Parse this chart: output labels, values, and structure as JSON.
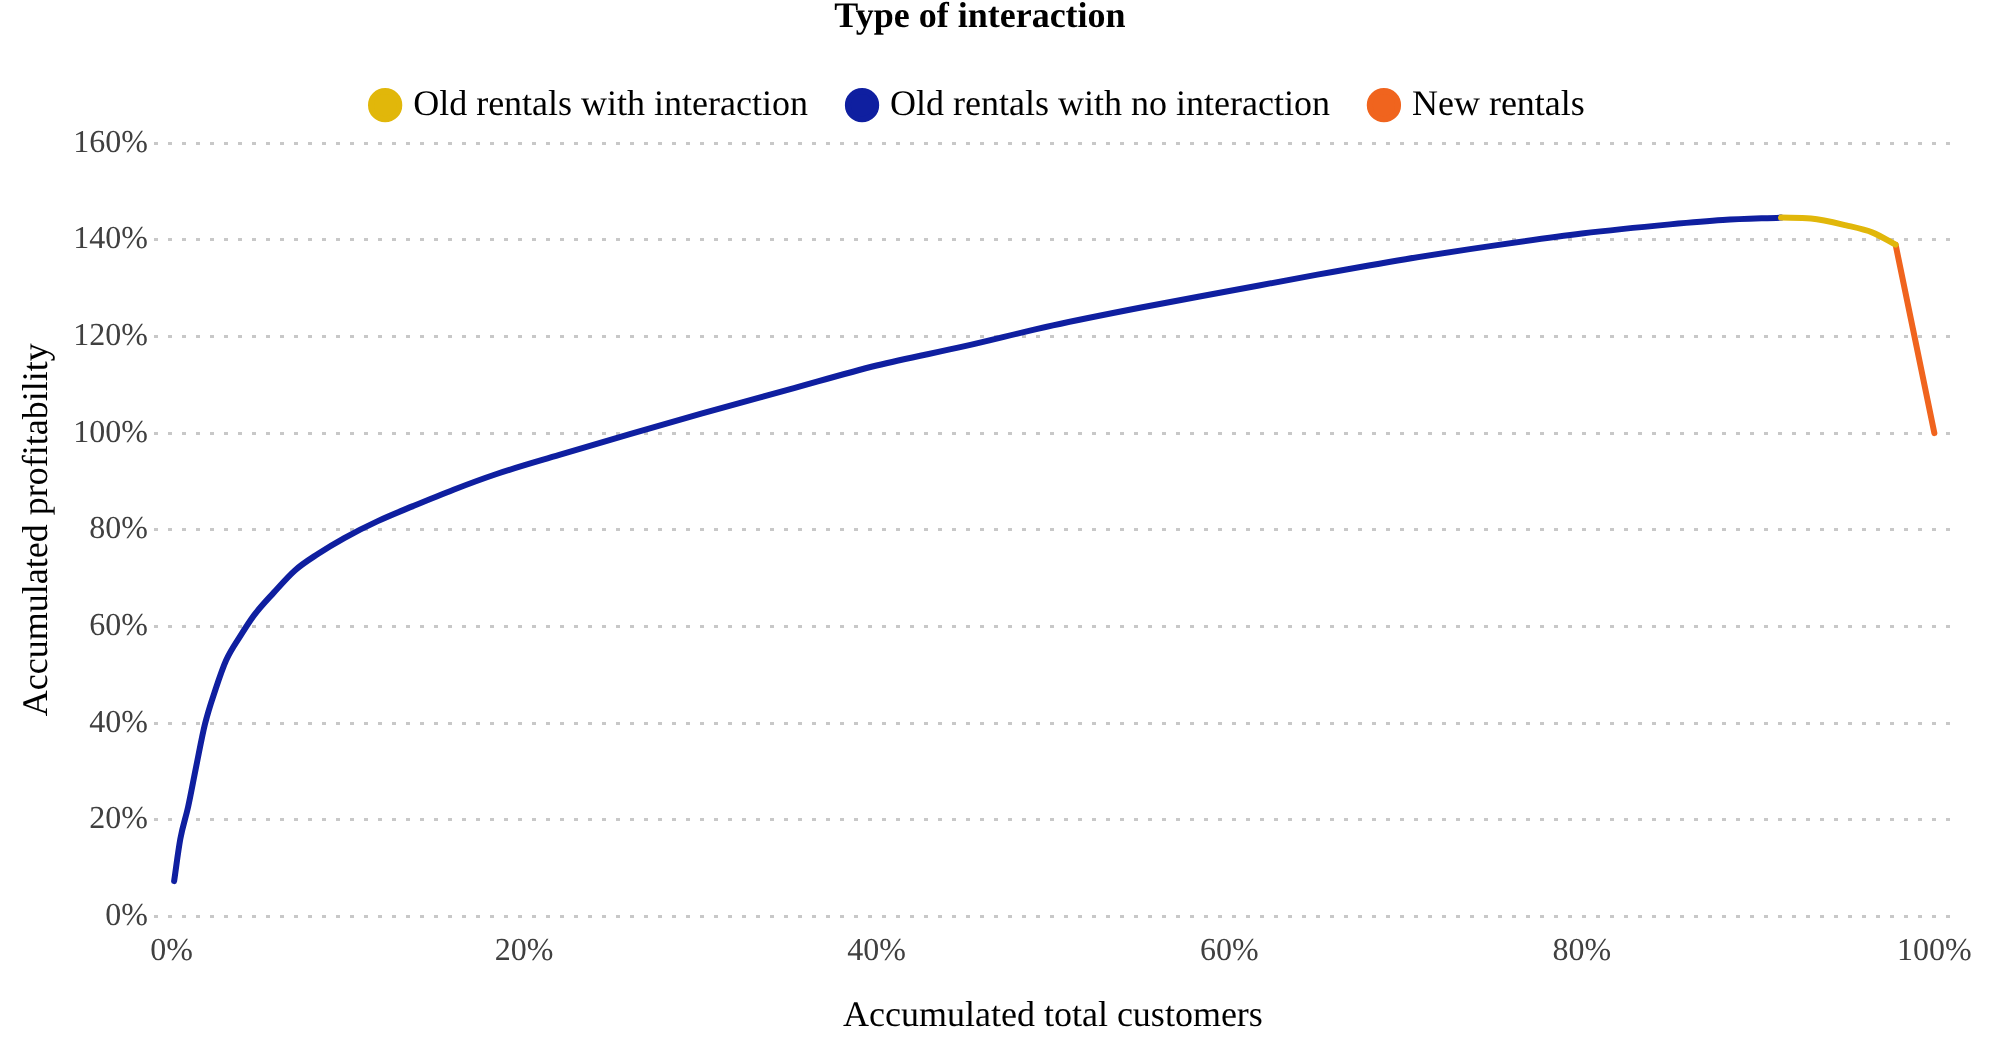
{
  "chart_data": {
    "type": "line",
    "legend_title": "Type of interaction",
    "xlabel": "Accumulated total customers",
    "ylabel": "Accumulated profitability",
    "xlim": [
      -1,
      101
    ],
    "ylim": [
      0,
      160
    ],
    "xticks": [
      {
        "value": 0,
        "label": "0%"
      },
      {
        "value": 20,
        "label": "20%"
      },
      {
        "value": 40,
        "label": "40%"
      },
      {
        "value": 60,
        "label": "60%"
      },
      {
        "value": 80,
        "label": "80%"
      },
      {
        "value": 100,
        "label": "100%"
      }
    ],
    "yticks": [
      {
        "value": 0,
        "label": "0%"
      },
      {
        "value": 20,
        "label": "20%"
      },
      {
        "value": 40,
        "label": "40%"
      },
      {
        "value": 60,
        "label": "60%"
      },
      {
        "value": 80,
        "label": "80%"
      },
      {
        "value": 100,
        "label": "100%"
      },
      {
        "value": 120,
        "label": "120%"
      },
      {
        "value": 140,
        "label": "140%"
      },
      {
        "value": 160,
        "label": "160%"
      }
    ],
    "grid": "y",
    "legend": "top",
    "marker": "none",
    "line_style": "solid",
    "series": [
      {
        "name": "Old rentals with interaction",
        "color": "#e1b70a",
        "x": [
          91.3,
          93,
          95,
          96.5,
          97.8
        ],
        "values": [
          144.6,
          144.4,
          143,
          141.5,
          139
        ]
      },
      {
        "name": "Old rentals with no interaction",
        "color": "#0f1fa0",
        "x": [
          0.15,
          0.5,
          0.94,
          1.4,
          1.9,
          2.5,
          3.1,
          3.9,
          4.7,
          5.8,
          7,
          8.3,
          9.8,
          11.7,
          13.7,
          16,
          18.4,
          22,
          26,
          30,
          35,
          40,
          45,
          50,
          55,
          60,
          65,
          70,
          75,
          80,
          85,
          88,
          91.3
        ],
        "values": [
          7.3,
          16,
          22.6,
          31,
          39.8,
          47,
          53,
          58,
          62.4,
          67,
          71.6,
          75,
          78.3,
          81.8,
          84.9,
          88.3,
          91.5,
          95.5,
          99.8,
          104,
          109,
          114,
          118,
          122.3,
          126,
          129.4,
          132.8,
          136,
          138.8,
          141.3,
          143.2,
          144.1,
          144.6
        ]
      },
      {
        "name": "New rentals",
        "color": "#f0641e",
        "x": [
          97.8,
          100
        ],
        "values": [
          139,
          100
        ]
      }
    ]
  }
}
